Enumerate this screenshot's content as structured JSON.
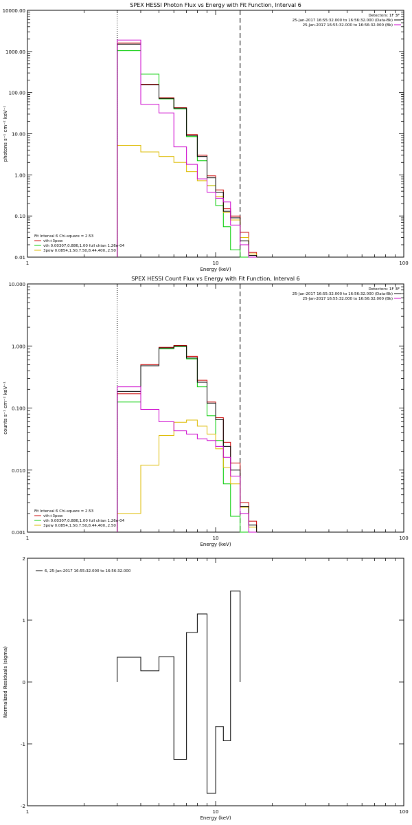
{
  "chart_data": [
    {
      "type": "line",
      "title": "SPEX HESSI Photon Flux vs Energy with Fit Function, Interval 6",
      "xlabel": "Energy (keV)",
      "ylabel": "photons s⁻¹ cm⁻² keV⁻¹",
      "xscale": "log",
      "yscale": "log",
      "xlim": [
        1,
        100
      ],
      "ylim": [
        0.01,
        10000
      ],
      "xticks": [
        1,
        10,
        100
      ],
      "yticks": [
        0.01,
        0.1,
        1,
        10,
        100,
        1000,
        10000
      ],
      "ytick_labels": [
        "0.01",
        "0.10",
        "1.00",
        "10.00",
        "100.00",
        "1000.00",
        "10000.00"
      ],
      "vlines": [
        {
          "x": 3.0,
          "style": "dotted"
        },
        {
          "x": 13.5,
          "style": "dashed"
        }
      ],
      "legend_topright": [
        {
          "text": "Detectors: 1F 3F",
          "color": ""
        },
        {
          "text": "25-Jan-2017 16:55:32.000 to 16:56:32.000 (Data-Bk)",
          "color": "#000000"
        },
        {
          "text": "25-Jan-2017 16:55:32.000 to 16:56:32.000 (Bk)",
          "color": "#cc00cc"
        }
      ],
      "legend_bottomleft": [
        {
          "text": "Fit Interval 6   Chi-square = 2.53",
          "color": ""
        },
        {
          "text": "vth+3pow",
          "color": "#cc0000"
        },
        {
          "text": "vth 0.00307,0.886,1.00  full chian 1.26e-04",
          "color": "#00cc00"
        },
        {
          "text": "3pow 0.0854,1.50,7.50,8.44,400.,2.50",
          "color": "#ddbb00"
        }
      ],
      "bin_edges": [
        3.0,
        4.0,
        5.0,
        6.0,
        7.0,
        8.0,
        9.0,
        10.0,
        11.0,
        12.0,
        13.5,
        15.0,
        16.5
      ],
      "series": [
        {
          "name": "vth+3pow",
          "color": "#cc0000",
          "values": [
            1600,
            160,
            75,
            43,
            9.5,
            3.0,
            0.95,
            0.43,
            0.15,
            0.1,
            0.04,
            0.013
          ]
        },
        {
          "name": "vth",
          "color": "#00cc00",
          "values": [
            1050,
            280,
            70,
            40,
            8.5,
            2.2,
            0.55,
            0.18,
            0.055,
            0.015,
            0.008,
            0.0
          ]
        },
        {
          "name": "3pow",
          "color": "#ddbb00",
          "values": [
            5.2,
            3.6,
            2.8,
            2.0,
            1.2,
            0.72,
            0.55,
            0.3,
            0.12,
            0.08,
            0.03,
            0.012
          ]
        },
        {
          "name": "Data-Bk",
          "color": "#000000",
          "values": [
            1500,
            155,
            72,
            42,
            9.0,
            2.8,
            0.85,
            0.38,
            0.13,
            0.09,
            0.025,
            0.011
          ]
        },
        {
          "name": "Bk",
          "color": "#cc00cc",
          "values": [
            1900,
            52,
            32,
            4.8,
            1.8,
            0.8,
            0.38,
            0.27,
            0.22,
            0.06,
            0.02,
            0.01
          ]
        }
      ]
    },
    {
      "type": "line",
      "title": "SPEX HESSI Count Flux vs Energy with Fit Function, Interval 6",
      "xlabel": "Energy (keV)",
      "ylabel": "counts s⁻¹ cm⁻² keV⁻¹",
      "xscale": "log",
      "yscale": "log",
      "xlim": [
        1,
        100
      ],
      "ylim": [
        0.001,
        10
      ],
      "xticks": [
        1,
        10,
        100
      ],
      "yticks": [
        0.001,
        0.01,
        0.1,
        1,
        10
      ],
      "ytick_labels": [
        "0.001",
        "0.010",
        "0.100",
        "1.000",
        "10.000"
      ],
      "vlines": [
        {
          "x": 3.0,
          "style": "dotted"
        },
        {
          "x": 13.5,
          "style": "dashed"
        }
      ],
      "legend_topright": [
        {
          "text": "Detectors: 1F 3F",
          "color": ""
        },
        {
          "text": "25-Jan-2017 16:55:32.000 to 16:56:32.000 (Data-Bk)",
          "color": "#000000"
        },
        {
          "text": "25-Jan-2017 16:55:32.000 to 16:56:32.000 (Bk)",
          "color": "#cc00cc"
        }
      ],
      "legend_bottomleft": [
        {
          "text": "Fit Interval 6   Chi-square = 2.53",
          "color": ""
        },
        {
          "text": "vth+3pow",
          "color": "#cc0000"
        },
        {
          "text": "vth 0.00307,0.886,1.00  full chian 1.26e-04",
          "color": "#00cc00"
        },
        {
          "text": "3pow 0.0854,1.50,7.50,8.44,400.,2.50",
          "color": "#ddbb00"
        }
      ],
      "bin_edges": [
        3.0,
        4.0,
        5.0,
        6.0,
        7.0,
        8.0,
        9.0,
        10.0,
        11.0,
        12.0,
        13.5,
        15.0,
        16.5
      ],
      "series": [
        {
          "name": "vth+3pow",
          "color": "#cc0000",
          "values": [
            0.17,
            0.5,
            0.95,
            1.02,
            0.68,
            0.28,
            0.125,
            0.07,
            0.028,
            0.013,
            0.003,
            0.0015
          ]
        },
        {
          "name": "vth",
          "color": "#00cc00",
          "values": [
            0.125,
            0.48,
            0.9,
            0.98,
            0.62,
            0.22,
            0.075,
            0.03,
            0.006,
            0.0018,
            0.0,
            0.0
          ]
        },
        {
          "name": "3pow",
          "color": "#ddbb00",
          "values": [
            0.002,
            0.012,
            0.036,
            0.059,
            0.064,
            0.051,
            0.038,
            0.022,
            0.011,
            0.006,
            0.0025,
            0.0012
          ]
        },
        {
          "name": "Data-Bk",
          "color": "#000000",
          "values": [
            0.185,
            0.48,
            0.93,
            1.0,
            0.64,
            0.26,
            0.12,
            0.065,
            0.024,
            0.01,
            0.0026,
            0.0013
          ]
        },
        {
          "name": "Bk",
          "color": "#cc00cc",
          "values": [
            0.22,
            0.095,
            0.06,
            0.043,
            0.038,
            0.032,
            0.03,
            0.024,
            0.016,
            0.008,
            0.002,
            0.001
          ]
        }
      ]
    },
    {
      "type": "line",
      "title": "",
      "xlabel": "Energy (keV)",
      "ylabel": "Normalized Residuals (sigma)",
      "xscale": "log",
      "yscale": "linear",
      "xlim": [
        1,
        100
      ],
      "ylim": [
        -2,
        2
      ],
      "xticks": [
        1,
        10,
        100
      ],
      "yticks": [
        -2,
        -1,
        0,
        1,
        2
      ],
      "ytick_labels": [
        "-2",
        "-1",
        "0",
        "1",
        "2"
      ],
      "legend_topleft": [
        {
          "text": "6, 25-Jan-2017 16:55:32.000 to 16:56:32.000",
          "color": "#000000"
        }
      ],
      "bin_edges": [
        3.0,
        4.0,
        5.0,
        6.0,
        7.0,
        8.0,
        9.0,
        10.0,
        11.0,
        12.0,
        13.5
      ],
      "series": [
        {
          "name": "",
          "color": "#000000",
          "values": [
            0.4,
            0.18,
            0.41,
            -1.25,
            0.8,
            1.1,
            -1.8,
            -0.72,
            -0.95,
            1.47
          ]
        }
      ]
    }
  ]
}
